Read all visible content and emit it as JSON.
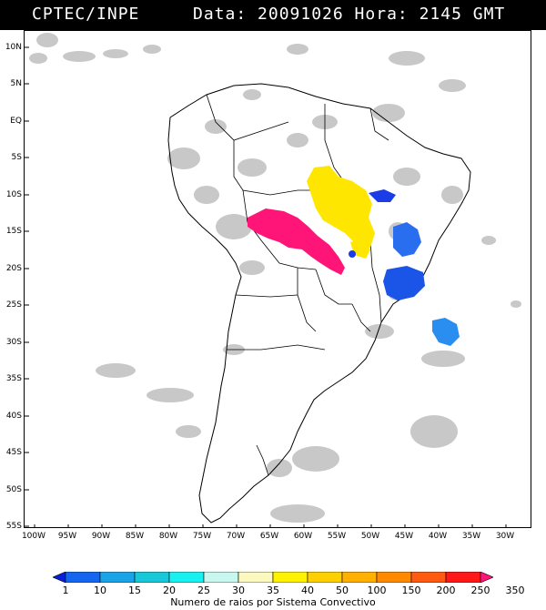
{
  "header": {
    "title_left": "CPTEC/INPE",
    "title_right": "Data: 20091026 Hora: 2145 GMT"
  },
  "axes": {
    "lat_labels": [
      "10N",
      "5N",
      "EQ",
      "5S",
      "10S",
      "15S",
      "20S",
      "25S",
      "30S",
      "35S",
      "40S",
      "45S",
      "50S",
      "55S"
    ],
    "lon_labels": [
      "100W",
      "95W",
      "90W",
      "85W",
      "80W",
      "75W",
      "70W",
      "65W",
      "60W",
      "55W",
      "50W",
      "45W",
      "40W",
      "35W",
      "30W"
    ]
  },
  "colorbar": {
    "labels": [
      "1",
      "10",
      "15",
      "20",
      "25",
      "30",
      "35",
      "40",
      "50",
      "100",
      "150",
      "200",
      "250",
      "350"
    ],
    "colors": [
      "#0a1fd6",
      "#1466f0",
      "#1ba3e8",
      "#18c7d8",
      "#19f0f0",
      "#c8f7f0",
      "#fbf8c0",
      "#fff200",
      "#ffd000",
      "#ffb000",
      "#ff8a00",
      "#ff5a10",
      "#ff1818",
      "#ff1478"
    ],
    "caption": "Numero de raios por Sistema Convectivo"
  },
  "legend_colors": {
    "cloud": "#c8c8c8",
    "yellow": "#ffe600",
    "magenta": "#ff1478",
    "blue": "#1a3de8",
    "light_blue": "#2a8ef0"
  }
}
